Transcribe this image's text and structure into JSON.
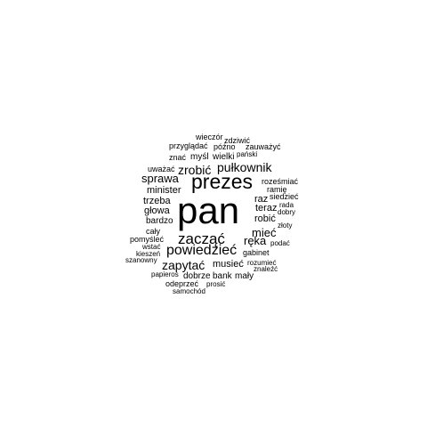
{
  "words": [
    {
      "text": "pan"
    },
    {
      "text": "prezes"
    },
    {
      "text": "zacząć"
    },
    {
      "text": "powiedzieć"
    },
    {
      "text": "zapytać"
    },
    {
      "text": "pułkownik"
    },
    {
      "text": "zrobić"
    },
    {
      "text": "sprawa"
    },
    {
      "text": "mieć"
    },
    {
      "text": "ręka"
    },
    {
      "text": "minister"
    },
    {
      "text": "trzeba"
    },
    {
      "text": "głowa"
    },
    {
      "text": "robić"
    },
    {
      "text": "teraz"
    },
    {
      "text": "raz"
    },
    {
      "text": "musieć"
    },
    {
      "text": "bardzo"
    },
    {
      "text": "myśl"
    },
    {
      "text": "wielki"
    },
    {
      "text": "dobrze"
    },
    {
      "text": "bank"
    },
    {
      "text": "mały"
    },
    {
      "text": "znać"
    },
    {
      "text": "przyglądać"
    },
    {
      "text": "późno"
    },
    {
      "text": "zauważyć"
    },
    {
      "text": "wieczór"
    },
    {
      "text": "zdziwić"
    },
    {
      "text": "pański"
    },
    {
      "text": "uważać"
    },
    {
      "text": "roześmiać"
    },
    {
      "text": "ramię"
    },
    {
      "text": "siedzieć"
    },
    {
      "text": "rada"
    },
    {
      "text": "dobry"
    },
    {
      "text": "złoty"
    },
    {
      "text": "cały"
    },
    {
      "text": "pomyśleć"
    },
    {
      "text": "wstać"
    },
    {
      "text": "kieszeń"
    },
    {
      "text": "szanowny"
    },
    {
      "text": "podać"
    },
    {
      "text": "gabinet"
    },
    {
      "text": "rozumieć"
    },
    {
      "text": "znaleźć"
    },
    {
      "text": "papieros"
    },
    {
      "text": "odeprzeć"
    },
    {
      "text": "prosić"
    },
    {
      "text": "samochód"
    }
  ]
}
